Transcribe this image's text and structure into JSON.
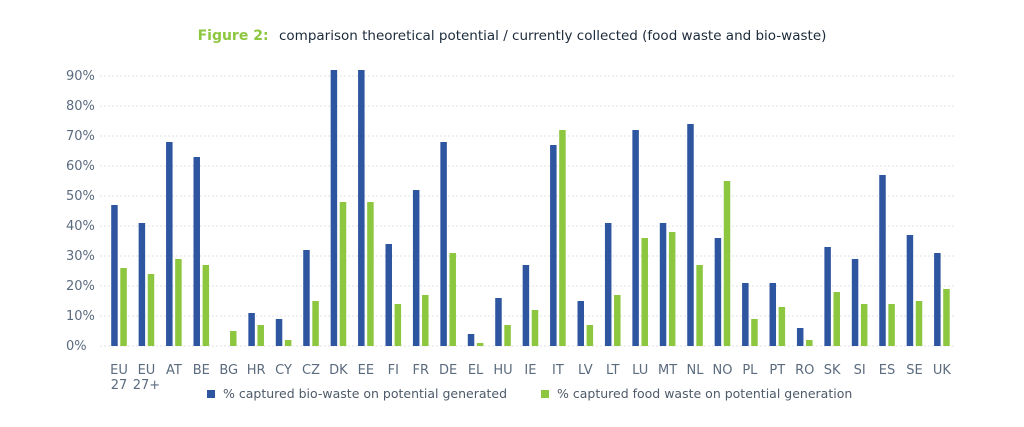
{
  "chart_data": {
    "type": "bar",
    "title_prefix": "Figure 2:",
    "title": "comparison theoretical potential / currently collected (food waste and bio-waste)",
    "ylim": [
      0,
      92
    ],
    "yticks": [
      "0%",
      "10%",
      "20%",
      "30%",
      "40%",
      "50%",
      "60%",
      "70%",
      "80%",
      "90%"
    ],
    "grid": true,
    "legend_position": "bottom",
    "categories": [
      [
        "EU",
        "27"
      ],
      [
        "EU",
        "27+"
      ],
      [
        "AT"
      ],
      [
        "BE"
      ],
      [
        "BG"
      ],
      [
        "HR"
      ],
      [
        "CY"
      ],
      [
        "CZ"
      ],
      [
        "DK"
      ],
      [
        "EE"
      ],
      [
        "FI"
      ],
      [
        "FR"
      ],
      [
        "DE"
      ],
      [
        "EL"
      ],
      [
        "HU"
      ],
      [
        "IE"
      ],
      [
        "IT"
      ],
      [
        "LV"
      ],
      [
        "LT"
      ],
      [
        "LU"
      ],
      [
        "MT"
      ],
      [
        "NL"
      ],
      [
        "NO"
      ],
      [
        "PL"
      ],
      [
        "PT"
      ],
      [
        "RO"
      ],
      [
        "SK"
      ],
      [
        "SI"
      ],
      [
        "ES"
      ],
      [
        "SE"
      ],
      [
        "UK"
      ]
    ],
    "series": [
      {
        "name": "% captured bio-waste on potential generated",
        "color": "#2e56a0",
        "values": [
          47,
          41,
          68,
          63,
          0,
          11,
          9,
          32,
          92,
          92,
          34,
          52,
          68,
          4,
          16,
          27,
          67,
          15,
          41,
          72,
          41,
          74,
          36,
          21,
          21,
          6,
          33,
          29,
          57,
          37,
          31
        ]
      },
      {
        "name": "% captured food waste on potential generation",
        "color": "#8dc63f",
        "values": [
          26,
          24,
          29,
          27,
          5,
          7,
          2,
          15,
          48,
          48,
          14,
          17,
          31,
          1,
          7,
          12,
          72,
          7,
          17,
          36,
          38,
          27,
          55,
          9,
          13,
          2,
          18,
          14,
          14,
          15,
          19
        ]
      }
    ]
  },
  "colors": {
    "title_prefix": "#8dc63f",
    "title": "#1b2a3a",
    "axis_text": "#5b6b7e",
    "grid": "#dde1e6"
  }
}
